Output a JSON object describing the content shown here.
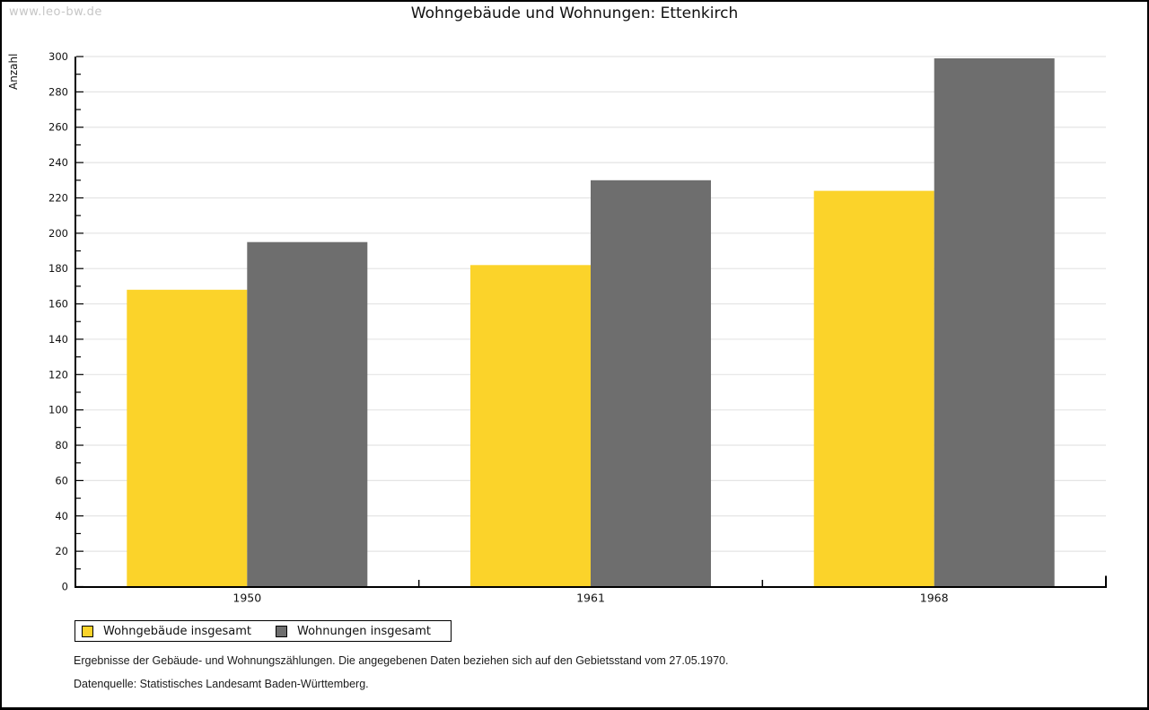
{
  "watermark": "www.leo-bw.de",
  "title": "Wohngebäude und Wohnungen: Ettenkirch",
  "chart_data": {
    "type": "bar",
    "title": "Wohngebäude und Wohnungen: Ettenkirch",
    "categories": [
      "1950",
      "1961",
      "1968"
    ],
    "series": [
      {
        "name": "Wohngebäude insgesamt",
        "color": "#fbd32a",
        "values": [
          168,
          182,
          224
        ]
      },
      {
        "name": "Wohnungen insgesamt",
        "color": "#6e6e6e",
        "values": [
          195,
          230,
          299
        ]
      }
    ],
    "xlabel": "",
    "ylabel": "Anzahl",
    "ylim": [
      0,
      300
    ],
    "ytick_major": 20,
    "ytick_minor": 10,
    "grid": "horizontal-major-only",
    "legend_position": "bottom-left",
    "colors": {
      "gridline": "#e4e4e4",
      "axis": "#000000",
      "text": "#111111"
    }
  },
  "footnotes": {
    "line1": "Ergebnisse der Gebäude- und Wohnungszählungen. Die angegebenen Daten beziehen sich auf den Gebietsstand vom 27.05.1970.",
    "line2": "Datenquelle: Statistisches Landesamt Baden-Württemberg."
  }
}
